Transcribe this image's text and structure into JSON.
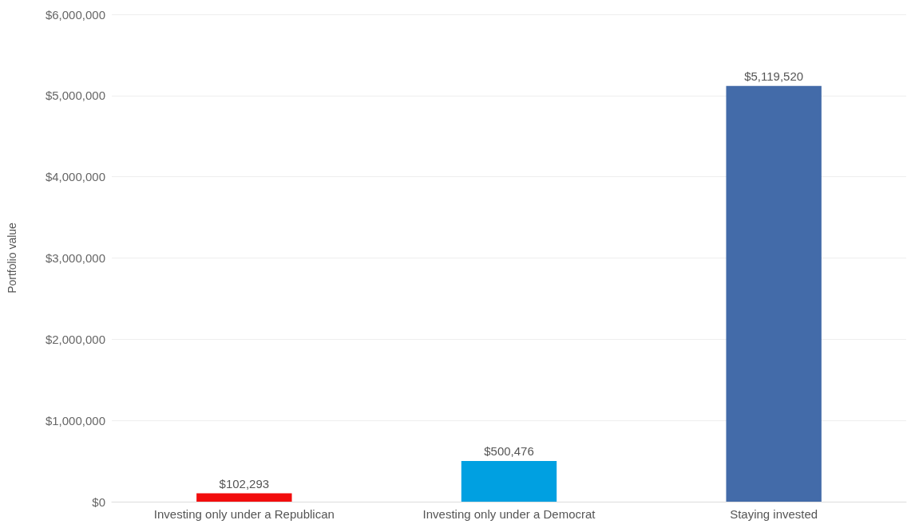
{
  "chart_data": {
    "type": "bar",
    "ylabel": "Portfolio value",
    "categories": [
      "Investing only under a Republican",
      "Investing only under a Democrat",
      "Staying invested"
    ],
    "values": [
      102293,
      500476,
      5119520
    ],
    "colors": [
      "#f20d0d",
      "#00a0e1",
      "#436ba9"
    ],
    "value_labels": [
      "$102,293",
      "$500,476",
      "$5,119,520"
    ],
    "ylim": [
      0,
      6000000
    ],
    "yticks": [
      {
        "value": 0,
        "label": "$0"
      },
      {
        "value": 1000000,
        "label": "$1,000,000"
      },
      {
        "value": 2000000,
        "label": "$2,000,000"
      },
      {
        "value": 3000000,
        "label": "$3,000,000"
      },
      {
        "value": 4000000,
        "label": "$4,000,000"
      },
      {
        "value": 5000000,
        "label": "$5,000,000"
      },
      {
        "value": 6000000,
        "label": "$6,000,000"
      }
    ],
    "grid": "y"
  }
}
